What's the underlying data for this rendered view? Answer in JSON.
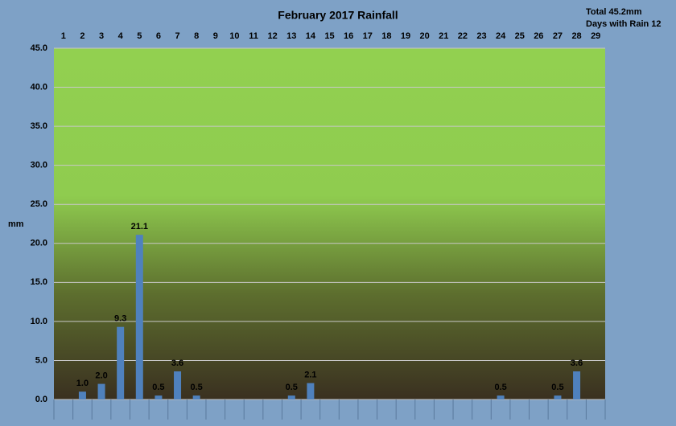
{
  "chart_data": {
    "type": "bar",
    "title": "February 2017 Rainfall",
    "annotations": [
      "Total 45.2mm",
      "Days with Rain 12"
    ],
    "y_label": "mm",
    "categories": [
      "1",
      "2",
      "3",
      "4",
      "5",
      "6",
      "7",
      "8",
      "9",
      "10",
      "11",
      "12",
      "13",
      "14",
      "15",
      "16",
      "17",
      "18",
      "19",
      "20",
      "21",
      "22",
      "23",
      "24",
      "25",
      "26",
      "27",
      "28",
      "29"
    ],
    "values": [
      null,
      1,
      2,
      9.3,
      21.1,
      0.5,
      3.6,
      0.5,
      null,
      null,
      null,
      null,
      0.5,
      2.1,
      null,
      null,
      null,
      null,
      null,
      null,
      null,
      null,
      null,
      0.5,
      null,
      null,
      0.5,
      3.6,
      null
    ],
    "value_labels": [
      null,
      "1.0",
      "2.0",
      "9.3",
      "21.1",
      "0.5",
      "3.6",
      "0.5",
      null,
      null,
      null,
      null,
      "0.5",
      "2.1",
      null,
      null,
      null,
      null,
      null,
      null,
      null,
      null,
      null,
      "0.5",
      null,
      null,
      "0.5",
      "3.6",
      null
    ],
    "color": "#4f81bd",
    "ylim": [
      0,
      45
    ],
    "yticks": [
      {
        "value": 0,
        "label": "0.0"
      },
      {
        "value": 5,
        "label": "5.0"
      },
      {
        "value": 10,
        "label": "10.0"
      },
      {
        "value": 15,
        "label": "15.0"
      },
      {
        "value": 20,
        "label": "20.0"
      },
      {
        "value": 25,
        "label": "25.0"
      },
      {
        "value": 30,
        "label": "30.0"
      },
      {
        "value": 35,
        "label": "35.0"
      },
      {
        "value": 40,
        "label": "40.0"
      },
      {
        "value": 45,
        "label": "45.0"
      }
    ],
    "grid": true
  }
}
